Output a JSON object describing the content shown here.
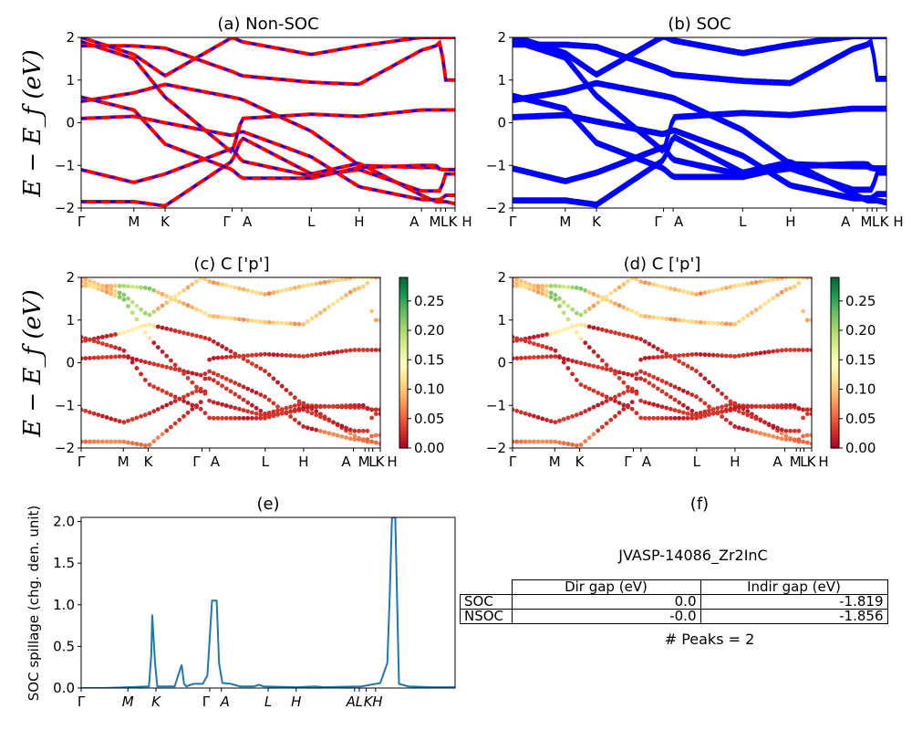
{
  "panels": {
    "a_title": "(a) Non-SOC",
    "b_title": "(b) SOC",
    "c_title": "(c)  C ['p']",
    "d_title": "(d) C ['p']",
    "e_title": "(e)",
    "f_title": "(f)"
  },
  "colors": {
    "nonsoc_red": "#ff0000",
    "nonsoc_blue": "#0000ff",
    "soc_blue": "#0000ff",
    "spillage_line": "#1f77b4"
  },
  "band_axes": {
    "ylabel": "E − E_f (eV)",
    "ylim": [
      -2,
      2
    ],
    "yticks": [
      "−2",
      "−1",
      "0",
      "1",
      "2"
    ],
    "kpoints_ab": [
      "Γ",
      "M",
      "K",
      "Γ",
      "A",
      "L",
      "H",
      "A",
      "M",
      "L",
      "K",
      "H"
    ],
    "kpoints_cd": [
      "Γ",
      "M",
      "K",
      "Γ",
      "A",
      "L",
      "H",
      "A",
      "M",
      "L",
      "K",
      "H"
    ]
  },
  "colorbar": {
    "cmap": "RdYlGn",
    "ticks": [
      "0.00",
      "0.05",
      "0.10",
      "0.15",
      "0.20",
      "0.25"
    ],
    "range": [
      0,
      0.29
    ]
  },
  "spillage": {
    "ylabel": "SOC spillage (chg. den. unit)",
    "yticks": [
      "0.0",
      "0.5",
      "1.0",
      "1.5",
      "2.0"
    ],
    "xticks": [
      "Γ",
      "M",
      "K",
      "Γ",
      "A",
      "L",
      "H",
      "A",
      "L",
      "K",
      "H"
    ]
  },
  "info": {
    "material": "JVASP-14086_Zr2InC",
    "col_dir": "Dir gap (eV)",
    "col_indir": "Indir gap (eV)",
    "row1_label": "SOC",
    "row1_dir": "0.0",
    "row1_indir": "-1.819",
    "row2_label": "NSOC",
    "row2_dir": "-0.0",
    "row2_indir": "-1.856",
    "peaks": "# Peaks = 2"
  },
  "chart_data": [
    {
      "type": "line",
      "title": "(a) Non-SOC",
      "ylabel": "E − E_f (eV)",
      "ylim": [
        -2,
        2
      ],
      "x": [
        0,
        0.11,
        0.175,
        0.315,
        0.335,
        0.48,
        0.58,
        0.71,
        0.74,
        0.75,
        0.76,
        0.78
      ],
      "series": [
        {
          "values": [
            -1.85,
            -1.85,
            -1.95,
            -0.9,
            -0.35,
            -1.2,
            -0.95,
            -1.7,
            -1.85,
            -1.85,
            -1.85,
            -1.9
          ]
        },
        {
          "values": [
            -1.1,
            -1.4,
            -1.2,
            -0.6,
            -0.9,
            -1.25,
            -1.1,
            -1.6,
            -1.6,
            -1.6,
            -1.2,
            -1.2
          ]
        },
        {
          "values": [
            0.1,
            0.15,
            0.0,
            -0.3,
            -0.2,
            -0.8,
            -1.5,
            -1.8,
            -1.8,
            -1.8,
            -1.7,
            -1.7
          ]
        },
        {
          "values": [
            0.5,
            0.7,
            0.9,
            0.6,
            0.55,
            -0.2,
            -1.0,
            -1.05,
            -1.05,
            -1.1,
            -1.1,
            -1.1
          ]
        },
        {
          "values": [
            0.6,
            0.3,
            -0.5,
            -1.1,
            -1.3,
            -1.3,
            -1.05,
            -1.0,
            -1.0,
            -1.1,
            -1.1,
            -1.1
          ]
        },
        {
          "values": [
            1.9,
            1.5,
            0.6,
            -0.7,
            0.1,
            0.2,
            0.15,
            0.3,
            0.3,
            0.3,
            0.3,
            0.3
          ]
        },
        {
          "values": [
            1.8,
            1.8,
            1.75,
            1.2,
            1.1,
            0.95,
            0.9,
            1.7,
            1.8,
            1.9,
            1.0,
            1.0
          ]
        },
        {
          "values": [
            2.0,
            1.6,
            1.1,
            2.0,
            1.9,
            1.6,
            1.8,
            2.0,
            2.0,
            2.0,
            2.0,
            2.0
          ]
        }
      ]
    },
    {
      "type": "line",
      "title": "(b) SOC",
      "ylabel": "",
      "ylim": [
        -2,
        2
      ],
      "x": [
        0,
        0.11,
        0.175,
        0.315,
        0.335,
        0.48,
        0.58,
        0.71,
        0.74,
        0.75,
        0.76,
        0.78
      ],
      "series": [
        {
          "values": [
            -1.85,
            -1.85,
            -1.95,
            -0.9,
            -0.35,
            -1.2,
            -0.95,
            -1.7,
            -1.85,
            -1.85,
            -1.85,
            -1.9
          ]
        },
        {
          "values": [
            -1.1,
            -1.4,
            -1.2,
            -0.6,
            -0.9,
            -1.25,
            -1.1,
            -1.6,
            -1.6,
            -1.6,
            -1.2,
            -1.2
          ]
        },
        {
          "values": [
            0.1,
            0.15,
            0.0,
            -0.3,
            -0.2,
            -0.8,
            -1.5,
            -1.8,
            -1.8,
            -1.8,
            -1.7,
            -1.7
          ]
        },
        {
          "values": [
            0.5,
            0.7,
            0.9,
            0.6,
            0.55,
            -0.2,
            -1.0,
            -1.05,
            -1.05,
            -1.1,
            -1.1,
            -1.1
          ]
        },
        {
          "values": [
            0.6,
            0.3,
            -0.5,
            -1.1,
            -1.3,
            -1.3,
            -1.05,
            -1.0,
            -1.0,
            -1.1,
            -1.1,
            -1.1
          ]
        },
        {
          "values": [
            1.9,
            1.5,
            0.6,
            -0.7,
            0.1,
            0.2,
            0.15,
            0.3,
            0.3,
            0.3,
            0.3,
            0.3
          ]
        },
        {
          "values": [
            1.8,
            1.8,
            1.75,
            1.2,
            1.1,
            0.95,
            0.9,
            1.7,
            1.8,
            1.9,
            1.0,
            1.0
          ]
        },
        {
          "values": [
            2.0,
            1.6,
            1.1,
            2.0,
            1.9,
            1.6,
            1.8,
            2.0,
            2.0,
            2.0,
            2.0,
            2.0
          ]
        }
      ]
    },
    {
      "type": "scatter",
      "title": "(c)  C ['p']",
      "ylabel": "E − E_f (eV)",
      "ylim": [
        -2,
        2
      ],
      "color_range": [
        0,
        0.29
      ]
    },
    {
      "type": "scatter",
      "title": "(d) C ['p']",
      "ylabel": "",
      "ylim": [
        -2,
        2
      ],
      "color_range": [
        0,
        0.29
      ]
    },
    {
      "type": "line",
      "title": "(e)",
      "ylabel": "SOC spillage (chg. den. unit)",
      "ylim": [
        0,
        2.05
      ],
      "x": [
        0,
        0.05,
        0.1,
        0.145,
        0.15,
        0.152,
        0.158,
        0.163,
        0.2,
        0.215,
        0.22,
        0.225,
        0.24,
        0.26,
        0.27,
        0.28,
        0.29,
        0.295,
        0.302,
        0.32,
        0.34,
        0.37,
        0.38,
        0.39,
        0.46,
        0.5,
        0.52,
        0.6,
        0.64,
        0.655,
        0.66,
        0.665,
        0.672,
        0.68,
        0.7,
        0.75,
        0.8
      ],
      "values": [
        0.0,
        0.0,
        0.01,
        0.02,
        0.4,
        0.88,
        0.3,
        0.02,
        0.02,
        0.28,
        0.05,
        0.02,
        0.05,
        0.05,
        0.15,
        1.05,
        1.05,
        0.3,
        0.06,
        0.05,
        0.02,
        0.02,
        0.04,
        0.02,
        0.01,
        0.02,
        0.01,
        0.02,
        0.06,
        0.3,
        1.1,
        2.05,
        2.05,
        0.05,
        0.02,
        0.01,
        0.01
      ]
    }
  ]
}
